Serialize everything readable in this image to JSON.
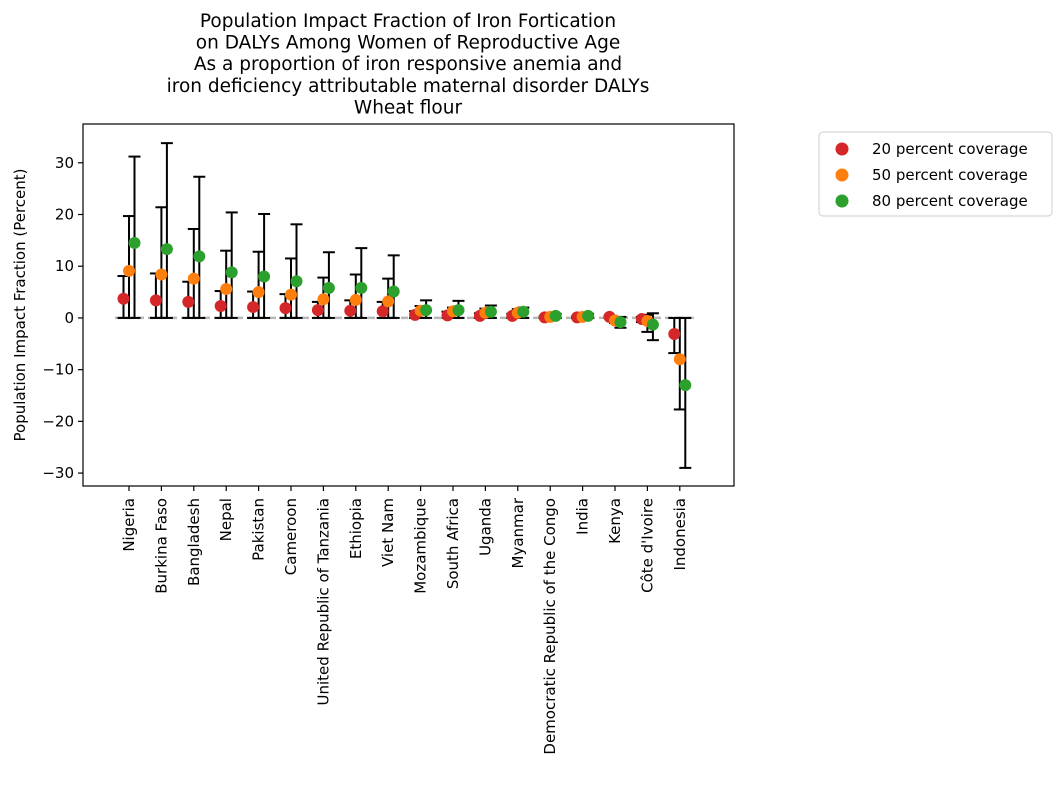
{
  "chart_data": {
    "type": "scatter",
    "title_lines": [
      "Population Impact Fraction of Iron Fortication",
      "on DALYs Among Women of Reproductive Age",
      "As a proportion of iron responsive anemia and",
      "iron deficiency attributable maternal disorder DALYs",
      "Wheat flour"
    ],
    "xlabel": "",
    "ylabel": "Population Impact Fraction (Percent)",
    "ylim": [
      -32.5,
      37.5
    ],
    "yticks": [
      -30,
      -20,
      -10,
      0,
      10,
      20,
      30
    ],
    "ytick_labels": [
      "−30",
      "−20",
      "−10",
      "0",
      "10",
      "20",
      "30"
    ],
    "grid": false,
    "legend_position": "outside-right-top",
    "reference_line": 0,
    "categories": [
      "Nigeria",
      "Burkina Faso",
      "Bangladesh",
      "Nepal",
      "Pakistan",
      "Cameroon",
      "United Republic of Tanzania",
      "Ethiopia",
      "Viet Nam",
      "Mozambique",
      "South Africa",
      "Uganda",
      "Myanmar",
      "Democratic Republic of the Congo",
      "India",
      "Kenya",
      "Côte d'Ivoire",
      "Indonesia"
    ],
    "series": [
      {
        "name": "20 percent coverage",
        "color": "#d62728",
        "values": [
          3.7,
          3.4,
          3.1,
          2.3,
          2.1,
          1.9,
          1.5,
          1.4,
          1.3,
          0.6,
          0.5,
          0.4,
          0.4,
          0.1,
          0.1,
          0.2,
          -0.2,
          -3.1
        ],
        "lower": [
          0,
          0,
          0,
          0,
          0,
          0,
          0,
          0,
          0,
          0,
          0,
          0,
          0,
          0,
          0,
          0,
          -0.8,
          -6.8
        ],
        "upper": [
          8.1,
          8.6,
          7.0,
          5.2,
          5.1,
          4.6,
          3.1,
          3.4,
          3.1,
          1.3,
          1.2,
          0.9,
          0.8,
          0.3,
          0.3,
          0.4,
          0.2,
          0
        ]
      },
      {
        "name": "50 percent coverage",
        "color": "#ff7f0e",
        "values": [
          9.1,
          8.4,
          7.6,
          5.6,
          5.0,
          4.5,
          3.6,
          3.5,
          3.2,
          1.4,
          1.3,
          1.0,
          1.0,
          0.2,
          0.2,
          -0.5,
          -0.6,
          -8.0
        ],
        "lower": [
          0,
          0,
          0,
          0,
          0,
          0,
          0,
          0,
          0,
          0,
          0,
          0,
          0,
          0,
          0,
          -1.0,
          -2.7,
          -17.7
        ],
        "upper": [
          19.7,
          21.4,
          17.2,
          13.0,
          12.8,
          11.5,
          7.8,
          8.4,
          7.6,
          2.3,
          2.0,
          1.8,
          1.7,
          0.5,
          0.4,
          0.1,
          0.6,
          0
        ]
      },
      {
        "name": "80 percent coverage",
        "color": "#2ca02c",
        "values": [
          14.5,
          13.3,
          11.9,
          8.8,
          8.0,
          7.1,
          5.8,
          5.8,
          5.1,
          1.5,
          1.5,
          1.2,
          1.2,
          0.4,
          0.4,
          -0.8,
          -1.3,
          -13.0
        ],
        "lower": [
          0,
          0,
          0,
          0,
          0,
          0,
          0,
          0,
          0,
          0,
          0,
          0,
          0,
          0,
          0,
          -1.9,
          -4.3,
          -29.0
        ],
        "upper": [
          31.2,
          33.8,
          27.3,
          20.4,
          20.1,
          18.1,
          12.7,
          13.5,
          12.1,
          3.4,
          3.3,
          2.4,
          2.0,
          0.8,
          0.8,
          0.2,
          0.9,
          0
        ]
      }
    ]
  }
}
